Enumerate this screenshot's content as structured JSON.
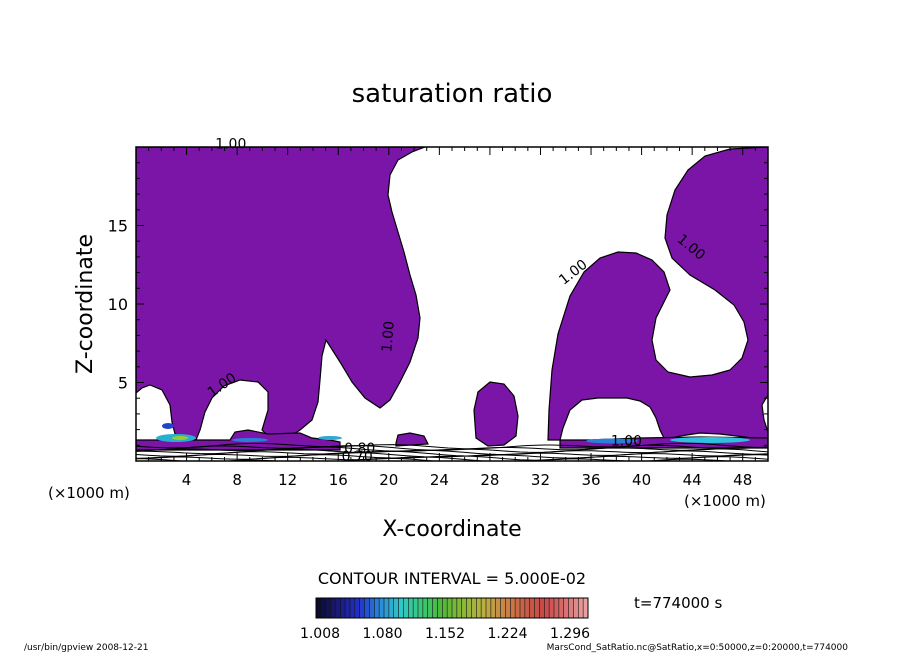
{
  "chart_data": {
    "type": "contour",
    "title": "saturation ratio",
    "xlabel": "X-coordinate",
    "ylabel": "Z-coordinate",
    "x_unit": "(×1000 m)",
    "z_unit": "(×1000 m)",
    "xlim": [
      0,
      50
    ],
    "ylim": [
      0,
      20
    ],
    "x_ticks": [
      "4",
      "8",
      "12",
      "16",
      "20",
      "24",
      "28",
      "32",
      "36",
      "40",
      "44",
      "48"
    ],
    "x_tick_values": [
      4,
      8,
      12,
      16,
      20,
      24,
      28,
      32,
      36,
      40,
      44,
      48
    ],
    "y_ticks": [
      "5",
      "10",
      "15"
    ],
    "y_tick_values": [
      5,
      10,
      15
    ],
    "contour_interval_text": "CONTOUR INTERVAL = 5.000E-02",
    "time_text": "t=774000 s",
    "colorbar": {
      "tick_labels": [
        "1.008",
        "1.080",
        "1.152",
        "1.224",
        "1.296"
      ],
      "colors": [
        "#0b0b2e",
        "#1a1a7a",
        "#2233cc",
        "#2a8ad8",
        "#30c8c8",
        "#38c878",
        "#4fb83a",
        "#8ab838",
        "#b8b040",
        "#c88848",
        "#c86048",
        "#c84848",
        "#d87070",
        "#e8a0a0"
      ]
    },
    "contour_labels": [
      {
        "text": "1.00",
        "x": 7.5,
        "z": 19.9
      },
      {
        "text": "1.00",
        "x": 20.3,
        "z": 7.9
      },
      {
        "text": "1.00",
        "x": 7.0,
        "z": 4.6
      },
      {
        "text": "1.00",
        "x": 34.8,
        "z": 11.8
      },
      {
        "text": "1.00",
        "x": 43.7,
        "z": 13.4
      },
      {
        "text": "0.80",
        "x": 17.7,
        "z": 0.5
      },
      {
        "text": "0.70",
        "x": 17.5,
        "z": 0.0
      },
      {
        "text": "1.00",
        "x": 38.8,
        "z": 1.0
      }
    ],
    "region_color": "#7a15a8"
  },
  "footer": {
    "left": "/usr/bin/gpview   2008-12-21",
    "right": "MarsCond_SatRatio.nc@SatRatio,x=0:50000,z=0:20000,t=774000"
  }
}
